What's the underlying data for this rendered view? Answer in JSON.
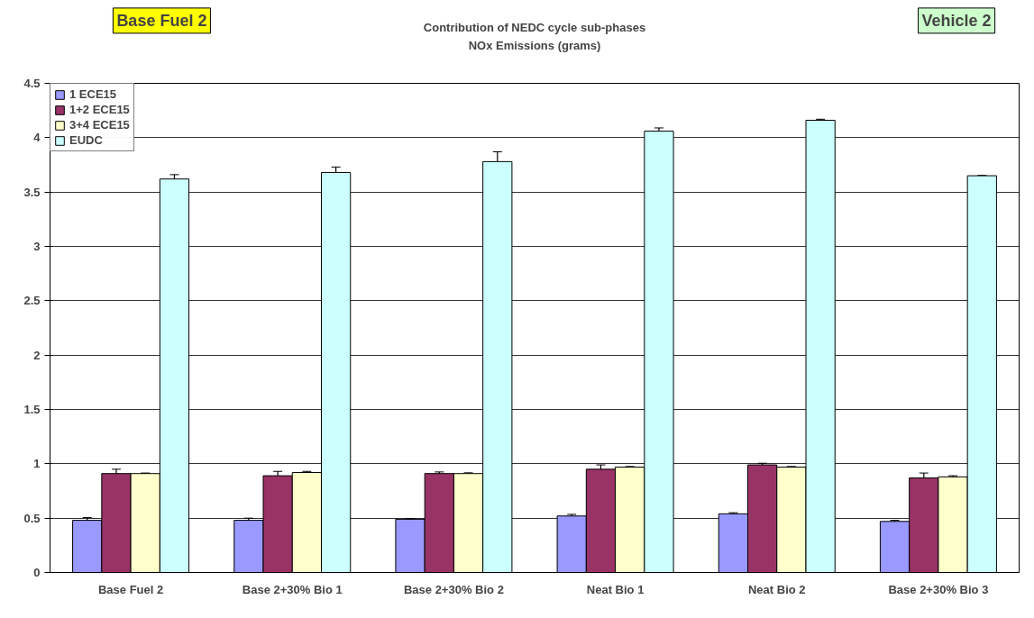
{
  "chart_data": {
    "type": "bar",
    "title": "Contribution of NEDC cycle sub-phases\nNOx Emissions (grams)",
    "annotations": [
      "Base Fuel 2",
      "Vehicle 2"
    ],
    "categories": [
      "Base Fuel 2",
      "Base 2+30% Bio 1",
      "Base 2+30% Bio 2",
      "Neat Bio 1",
      "Neat Bio 2",
      "Base 2+30% Bio 3"
    ],
    "series": [
      {
        "name": "1 ECE15",
        "color": "#9999ff",
        "values": [
          0.48,
          0.48,
          0.49,
          0.52,
          0.54,
          0.47
        ],
        "errors": [
          0.025,
          0.02,
          0.005,
          0.015,
          0.01,
          0.01
        ]
      },
      {
        "name": "1+2 ECE15",
        "color": "#993366",
        "values": [
          0.91,
          0.89,
          0.91,
          0.95,
          0.99,
          0.87
        ],
        "errors": [
          0.04,
          0.04,
          0.015,
          0.04,
          0.015,
          0.045
        ]
      },
      {
        "name": "3+4 ECE15",
        "color": "#ffffcc",
        "values": [
          0.91,
          0.92,
          0.91,
          0.97,
          0.97,
          0.88
        ],
        "errors": [
          0.005,
          0.01,
          0.007,
          0.005,
          0.005,
          0.01
        ]
      },
      {
        "name": "EUDC",
        "color": "#ccffff",
        "values": [
          3.62,
          3.68,
          3.78,
          4.06,
          4.16,
          3.65
        ],
        "errors": [
          0.04,
          0.05,
          0.09,
          0.03,
          0.01,
          0.003
        ]
      }
    ],
    "ylim": [
      0,
      4.5
    ],
    "yticks": [
      0,
      0.5,
      1,
      1.5,
      2,
      2.5,
      3,
      3.5,
      4,
      4.5
    ],
    "grid": "y",
    "legend": "top left"
  }
}
